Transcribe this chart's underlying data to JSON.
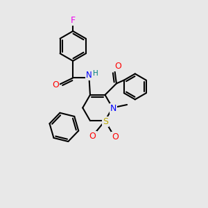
{
  "background_color": "#e8e8e8",
  "bond_color": "#000000",
  "bond_width": 1.5,
  "atom_colors": {
    "F": "#ee00ee",
    "O": "#ff0000",
    "N": "#0000ff",
    "NH": "#008080",
    "S": "#bbaa00",
    "C": "#000000"
  },
  "figsize": [
    3.0,
    3.0
  ],
  "dpi": 100
}
